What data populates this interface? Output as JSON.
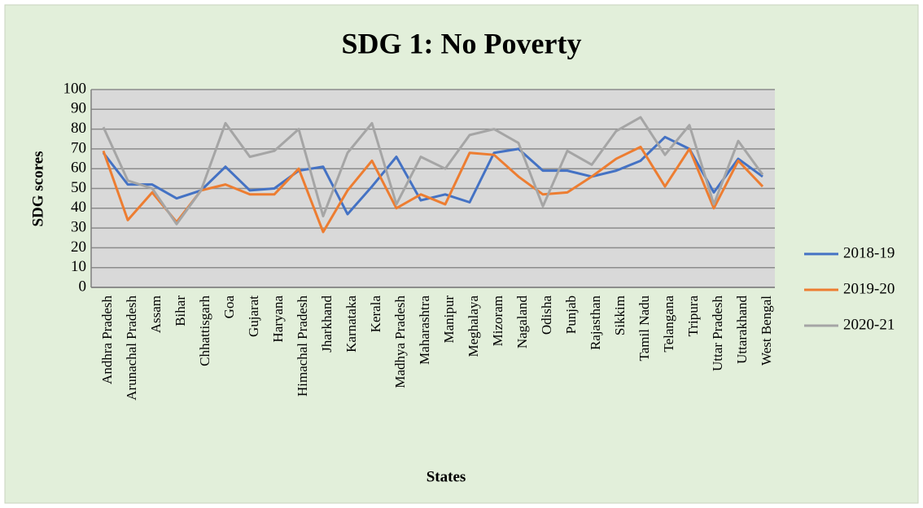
{
  "chart_data": {
    "type": "line",
    "title": "SDG 1: No Poverty",
    "x_label": "States",
    "y_label": "SDG scores",
    "categories": [
      "Andhra Pradesh",
      "Arunachal Pradesh",
      "Assam",
      "Bihar",
      "Chhattisgarh",
      "Goa",
      "Gujarat",
      "Haryana",
      "Himachal Pradesh",
      "Jharkhand",
      "Karnataka",
      "Kerala",
      "Madhya Pradesh",
      "Maharashtra",
      "Manipur",
      "Meghalaya",
      "Mizoram",
      "Nagaland",
      "Odisha",
      "Punjab",
      "Rajasthan",
      "Sikkim",
      "Tamil Nadu",
      "Telangana",
      "Tripura",
      "Uttar Pradesh",
      "Uttarakhand",
      "West Bengal"
    ],
    "series": [
      {
        "name": "2018-19",
        "color": "#4472c4",
        "values": [
          68,
          52,
          52,
          45,
          49,
          61,
          49,
          50,
          59,
          61,
          37,
          51,
          66,
          44,
          47,
          43,
          68,
          70,
          59,
          59,
          56,
          59,
          64,
          76,
          70,
          48,
          65,
          56
        ]
      },
      {
        "name": "2019-20",
        "color": "#ed7d31",
        "values": [
          69,
          34,
          48,
          33,
          49,
          52,
          47,
          47,
          60,
          28,
          49,
          64,
          40,
          47,
          42,
          68,
          67,
          56,
          47,
          48,
          56,
          65,
          71,
          51,
          70,
          40,
          64,
          51
        ]
      },
      {
        "name": "2020-21",
        "color": "#a5a5a5",
        "values": [
          81,
          54,
          50,
          32,
          49,
          83,
          66,
          69,
          80,
          36,
          68,
          83,
          42,
          66,
          60,
          77,
          80,
          73,
          41,
          69,
          62,
          79,
          86,
          67,
          82,
          42,
          74,
          57
        ]
      }
    ],
    "ylim": [
      0,
      100
    ],
    "yticks": [
      0,
      10,
      20,
      30,
      40,
      50,
      60,
      70,
      80,
      90,
      100
    ],
    "grid": true,
    "legend": "right"
  }
}
